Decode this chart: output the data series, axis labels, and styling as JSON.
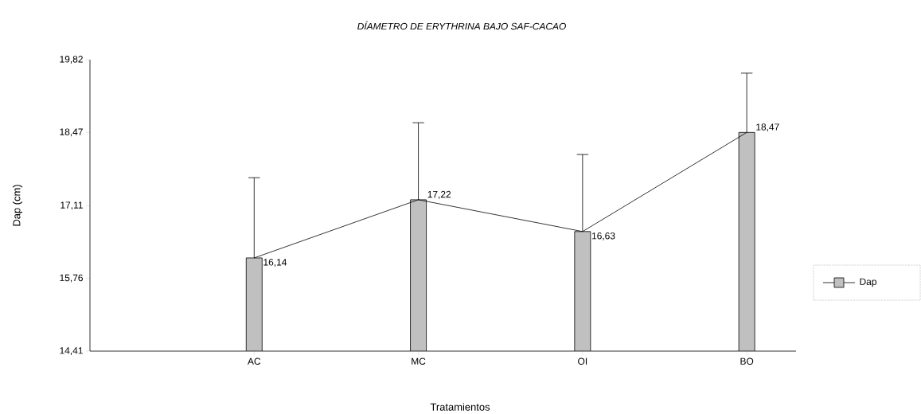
{
  "chart_data": {
    "type": "bar",
    "title": "DÍAMETRO DE ERYTHRINA BAJO SAF-CACAO",
    "xlabel": "Tratamientos",
    "ylabel": "Dap (cm)",
    "categories": [
      "AC",
      "MC",
      "OI",
      "BO"
    ],
    "series": [
      {
        "name": "Dap",
        "color": "#c0c0c0",
        "values": [
          16.14,
          17.22,
          16.63,
          18.47
        ],
        "errors": [
          [
            16.14,
            17.63
          ],
          [
            17.22,
            18.65
          ],
          [
            16.63,
            18.06
          ],
          [
            18.47,
            19.57
          ]
        ]
      },
      {
        "type": "line",
        "color": "#000000",
        "values": [
          16.14,
          17.22,
          16.63,
          18.47
        ],
        "value_labels": [
          "16,14",
          "17,22",
          "16,63",
          "18,47"
        ]
      }
    ],
    "ylim": [
      14.41,
      19.82
    ],
    "yticks": [
      {
        "value": 14.41,
        "label": "14,41"
      },
      {
        "value": 15.76,
        "label": "15,76"
      },
      {
        "value": 17.11,
        "label": "17,11"
      },
      {
        "value": 18.47,
        "label": "18,47"
      },
      {
        "value": 19.82,
        "label": "19,82"
      }
    ],
    "legend": "right"
  }
}
